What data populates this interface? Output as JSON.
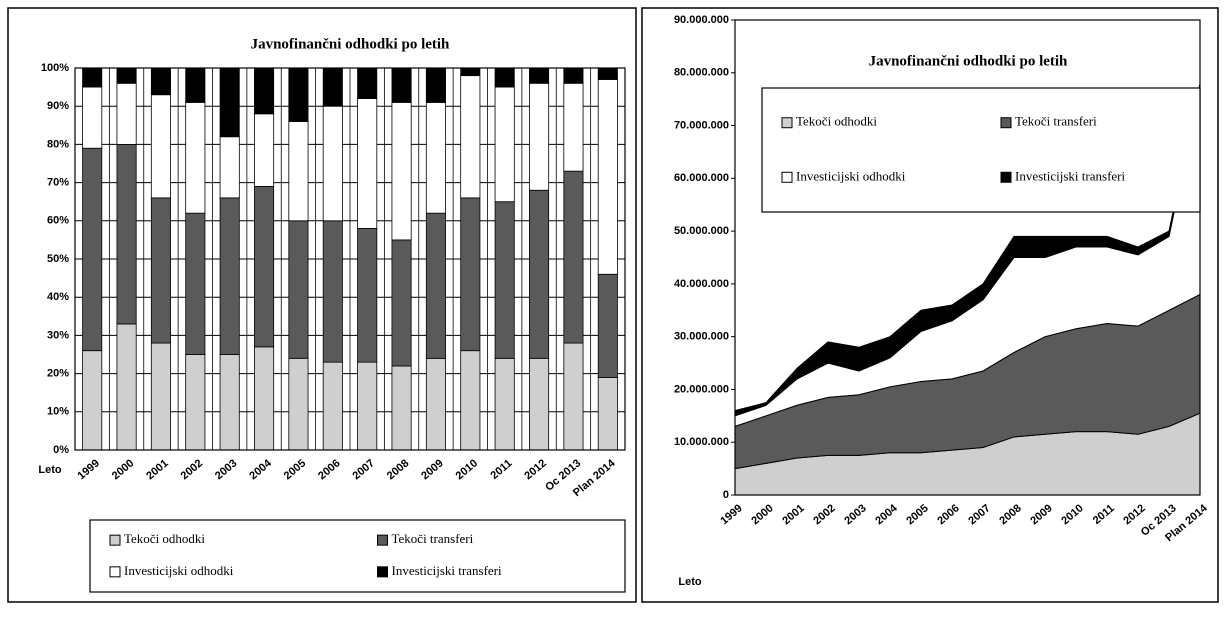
{
  "chart_data": [
    {
      "type": "bar100",
      "title": "Javnofinančni odhodki po letih",
      "x_label": "Leto",
      "categories": [
        "1999",
        "2000",
        "2001",
        "2002",
        "2003",
        "2004",
        "2005",
        "2006",
        "2007",
        "2008",
        "2009",
        "2010",
        "2011",
        "2012",
        "Oc 2013",
        "Plan 2014"
      ],
      "series": [
        {
          "name": "Tekoči odhodki",
          "color": "#cfcfcf",
          "values": [
            26,
            33,
            28,
            25,
            25,
            27,
            24,
            23,
            23,
            22,
            24,
            26,
            24,
            24,
            28,
            19
          ]
        },
        {
          "name": "Tekoči transferi",
          "color": "#5a5a5a",
          "values": [
            53,
            47,
            38,
            37,
            41,
            42,
            36,
            37,
            35,
            33,
            38,
            40,
            41,
            44,
            45,
            27
          ]
        },
        {
          "name": "Investicijski odhodki",
          "color": "#ffffff",
          "values": [
            16,
            16,
            27,
            29,
            16,
            19,
            26,
            30,
            34,
            36,
            29,
            32,
            30,
            28,
            23,
            51
          ]
        },
        {
          "name": "Investicijski transferi",
          "color": "#000000",
          "values": [
            5,
            4,
            7,
            9,
            18,
            12,
            14,
            10,
            8,
            9,
            9,
            2,
            5,
            4,
            4,
            3
          ]
        }
      ],
      "ylim": [
        0,
        100
      ],
      "yticks": [
        {
          "value": 0,
          "label": "0%"
        },
        {
          "value": 10,
          "label": "10%"
        },
        {
          "value": 20,
          "label": "20%"
        },
        {
          "value": 30,
          "label": "30%"
        },
        {
          "value": 40,
          "label": "40%"
        },
        {
          "value": 50,
          "label": "50%"
        },
        {
          "value": 60,
          "label": "60%"
        },
        {
          "value": 70,
          "label": "70%"
        },
        {
          "value": 80,
          "label": "80%"
        },
        {
          "value": 90,
          "label": "90%"
        },
        {
          "value": 100,
          "label": "100%"
        }
      ],
      "grid": true,
      "legend": "bottom"
    },
    {
      "type": "area",
      "title": "Javnofinančni odhodki po letih",
      "x_label": "Leto",
      "categories": [
        "1999",
        "2000",
        "2001",
        "2002",
        "2003",
        "2004",
        "2005",
        "2006",
        "2007",
        "2008",
        "2009",
        "2010",
        "2011",
        "2012",
        "Oc 2013",
        "Plan 2014"
      ],
      "series": [
        {
          "name": "Tekoči odhodki",
          "color": "#cfcfcf",
          "values": [
            5000000,
            6000000,
            7000000,
            7500000,
            7500000,
            8000000,
            8000000,
            8500000,
            9000000,
            11000000,
            11500000,
            12000000,
            12000000,
            11500000,
            13000000,
            15500000
          ]
        },
        {
          "name": "Tekoči transferi",
          "color": "#5a5a5a",
          "values": [
            8000000,
            9000000,
            10000000,
            11000000,
            11500000,
            12500000,
            13500000,
            13500000,
            14500000,
            16000000,
            18500000,
            19500000,
            20500000,
            20500000,
            22000000,
            22500000
          ]
        },
        {
          "name": "Investicijski odhodki",
          "color": "#ffffff",
          "values": [
            2000000,
            2000000,
            5000000,
            6500000,
            4500000,
            5500000,
            9500000,
            11000000,
            13500000,
            18000000,
            15000000,
            15500000,
            14500000,
            13500000,
            14000000,
            39000000
          ]
        },
        {
          "name": "Investicijski transferi",
          "color": "#000000",
          "values": [
            1000000,
            500000,
            2000000,
            4000000,
            4500000,
            4000000,
            4000000,
            3000000,
            3000000,
            4000000,
            4000000,
            2000000,
            2000000,
            1500000,
            1000000,
            1000000
          ]
        }
      ],
      "ylim": [
        0,
        90000000
      ],
      "yticks": [
        0,
        {
          "value": 10000000,
          "label": "10.000.000"
        },
        {
          "value": 20000000,
          "label": "20.000.000"
        },
        {
          "value": 30000000,
          "label": "30.000.000"
        },
        {
          "value": 40000000,
          "label": "40.000.000"
        },
        {
          "value": 50000000,
          "label": "50.000.000"
        },
        {
          "value": 60000000,
          "label": "60.000.000"
        },
        {
          "value": 70000000,
          "label": "70.000.000"
        },
        {
          "value": 80000000,
          "label": "80.000.000"
        },
        {
          "value": 90000000,
          "label": "90.000.000"
        }
      ],
      "grid": false,
      "legend": "top"
    }
  ]
}
